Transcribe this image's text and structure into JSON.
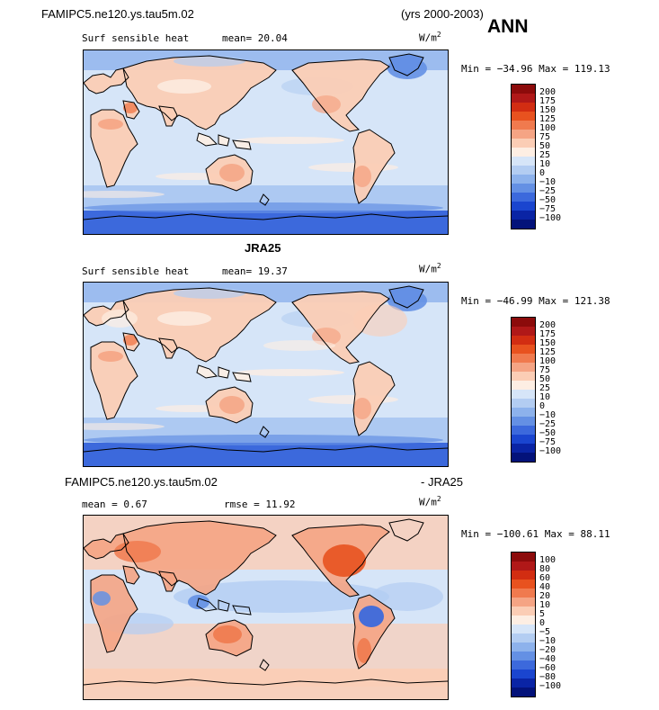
{
  "header": {
    "case": "FAMIPC5.ne120.ys.tau5m.02",
    "years": "(yrs 2000-2003)",
    "season": "ANN"
  },
  "panels": [
    {
      "title": "",
      "variable": "Surf sensible heat",
      "stat1": "mean=  20.04",
      "stat2": "",
      "unit_base": "W/m",
      "unit_exp": "2",
      "minmax": "Min = −34.96 Max = 119.13",
      "colorbar": {
        "labels": [
          "200",
          "175",
          "150",
          "125",
          "100",
          "75",
          "50",
          "25",
          "10",
          "0",
          "−10",
          "−25",
          "−50",
          "−75",
          "−100"
        ],
        "colors": [
          "#8c0b0b",
          "#b01818",
          "#d22d12",
          "#e8521f",
          "#f07a4e",
          "#f5a484",
          "#fbcdb5",
          "#fdeee3",
          "#d6e5f8",
          "#b3cdf2",
          "#8db2ec",
          "#6490e4",
          "#3c69dc",
          "#1a45cf",
          "#0a24a5",
          "#03127a"
        ]
      }
    },
    {
      "title": "JRA25",
      "variable": "Surf sensible heat",
      "stat1": "mean=  19.37",
      "stat2": "",
      "unit_base": "W/m",
      "unit_exp": "2",
      "minmax": "Min = −46.99 Max = 121.38",
      "colorbar": {
        "labels": [
          "200",
          "175",
          "150",
          "125",
          "100",
          "75",
          "50",
          "25",
          "10",
          "0",
          "−10",
          "−25",
          "−50",
          "−75",
          "−100"
        ],
        "colors": [
          "#8c0b0b",
          "#b01818",
          "#d22d12",
          "#e8521f",
          "#f07a4e",
          "#f5a484",
          "#fbcdb5",
          "#fdeee3",
          "#d6e5f8",
          "#b3cdf2",
          "#8db2ec",
          "#6490e4",
          "#3c69dc",
          "#1a45cf",
          "#0a24a5",
          "#03127a"
        ]
      }
    },
    {
      "title": "FAMIPC5.ne120.ys.tau5m.02",
      "title_right": "- JRA25",
      "variable": "",
      "stat1": "mean =   0.67",
      "stat2": "rmse =  11.92",
      "unit_base": "W/m",
      "unit_exp": "2",
      "minmax": "Min = −100.61 Max =  88.11",
      "colorbar": {
        "labels": [
          "100",
          "80",
          "60",
          "40",
          "20",
          "10",
          "5",
          "0",
          "−5",
          "−10",
          "−20",
          "−40",
          "−60",
          "−80",
          "−100"
        ],
        "colors": [
          "#8c0b0b",
          "#b01818",
          "#d22d12",
          "#e8521f",
          "#f07a4e",
          "#f5a484",
          "#fbcdb5",
          "#fdeee3",
          "#d6e5f8",
          "#b3cdf2",
          "#8db2ec",
          "#6490e4",
          "#3c69dc",
          "#1a45cf",
          "#0a24a5",
          "#03127a"
        ]
      }
    }
  ],
  "colors": {
    "ocean_base": "#d2e2f7",
    "land_warm": "#fbcdb5",
    "polar_cold": "#4c7ee0"
  }
}
